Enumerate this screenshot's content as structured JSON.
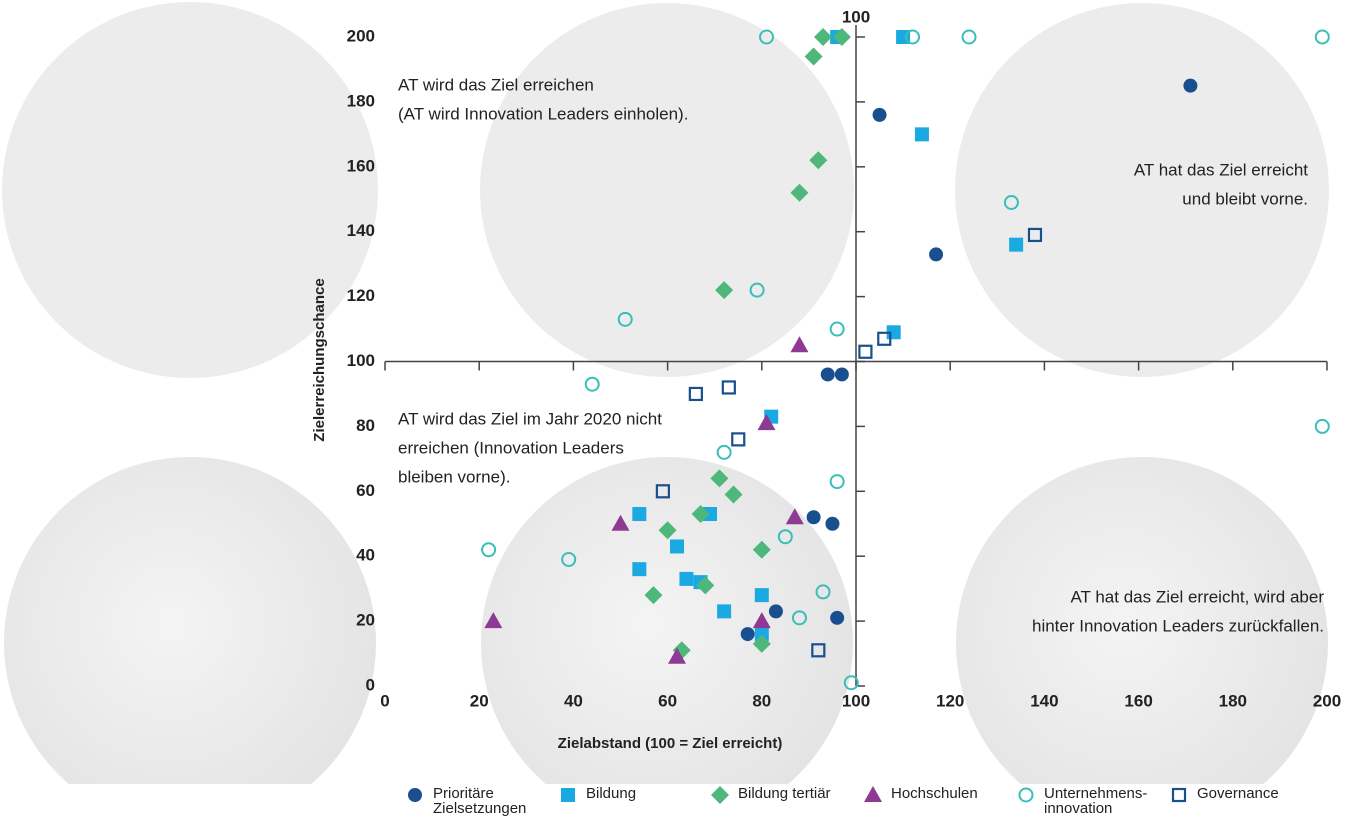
{
  "chart_data": {
    "type": "scatter",
    "xlabel": "Zielabstand (100 = Ziel erreicht)",
    "ylabel": "Zielerreichungschance",
    "cross_label": "100",
    "annotations": [
      [
        "AT wird das Ziel erreichen",
        "(AT wird Innovation Leaders einholen)."
      ],
      [
        "AT hat das Ziel erreicht",
        "und bleibt vorne."
      ],
      [
        "AT wird das Ziel im Jahr 2020 nicht",
        "erreichen (Innovation Leaders",
        "bleiben vorne)."
      ],
      [
        "AT hat das Ziel erreicht, wird aber",
        "hinter Innovation Leaders zurückfallen."
      ]
    ],
    "xlim": [
      0,
      200
    ],
    "ylim": [
      0,
      200
    ],
    "xticks": [
      0,
      20,
      40,
      60,
      80,
      100,
      120,
      140,
      160,
      180,
      200
    ],
    "yticks": [
      0,
      20,
      40,
      60,
      80,
      100,
      120,
      140,
      160,
      180,
      200
    ],
    "series": [
      {
        "name": "Prioritäre Zielsetzungen",
        "color": "#1a4f8f",
        "marker": "circle",
        "x": [
          105,
          171,
          117,
          94,
          97,
          91,
          95,
          96,
          83,
          77
        ],
        "y": [
          176,
          185,
          133,
          96,
          96,
          52,
          50,
          21,
          23,
          16
        ]
      },
      {
        "name": "Bildung",
        "color": "#1ba9e1",
        "marker": "square",
        "x": [
          96,
          110,
          114,
          134,
          108,
          82,
          54,
          69,
          62,
          54,
          64,
          67,
          80,
          72,
          80
        ],
        "y": [
          200,
          200,
          170,
          136,
          109,
          83,
          53,
          53,
          43,
          36,
          33,
          32,
          28,
          23,
          16
        ]
      },
      {
        "name": "Bildung tertiär",
        "color": "#4db87a",
        "marker": "diamond",
        "x": [
          93,
          97,
          91,
          92,
          88,
          72,
          71,
          74,
          67,
          60,
          80,
          68,
          57,
          80,
          63
        ],
        "y": [
          200,
          200,
          194,
          162,
          152,
          122,
          64,
          59,
          53,
          48,
          42,
          31,
          28,
          13,
          11
        ]
      },
      {
        "name": "Hochschulen",
        "color": "#8e3a94",
        "marker": "triangle",
        "x": [
          88,
          81,
          87,
          50,
          23,
          80,
          62
        ],
        "y": [
          105,
          81,
          52,
          50,
          20,
          20,
          9
        ]
      },
      {
        "name": "Unternehmens-innovation",
        "color": "#3bbdb8",
        "marker": "circle-open",
        "x": [
          81,
          112,
          124,
          199,
          133,
          79,
          51,
          96,
          44,
          199,
          72,
          96,
          85,
          22,
          39,
          93,
          88,
          99
        ],
        "y": [
          200,
          200,
          200,
          200,
          149,
          122,
          113,
          110,
          93,
          80,
          72,
          63,
          46,
          42,
          39,
          29,
          21,
          1
        ]
      },
      {
        "name": "Governance",
        "color": "#1a4f8f",
        "marker": "square-open",
        "x": [
          138,
          106,
          102,
          66,
          73,
          75,
          59,
          92
        ],
        "y": [
          139,
          107,
          103,
          90,
          92,
          76,
          60,
          11
        ]
      }
    ]
  }
}
